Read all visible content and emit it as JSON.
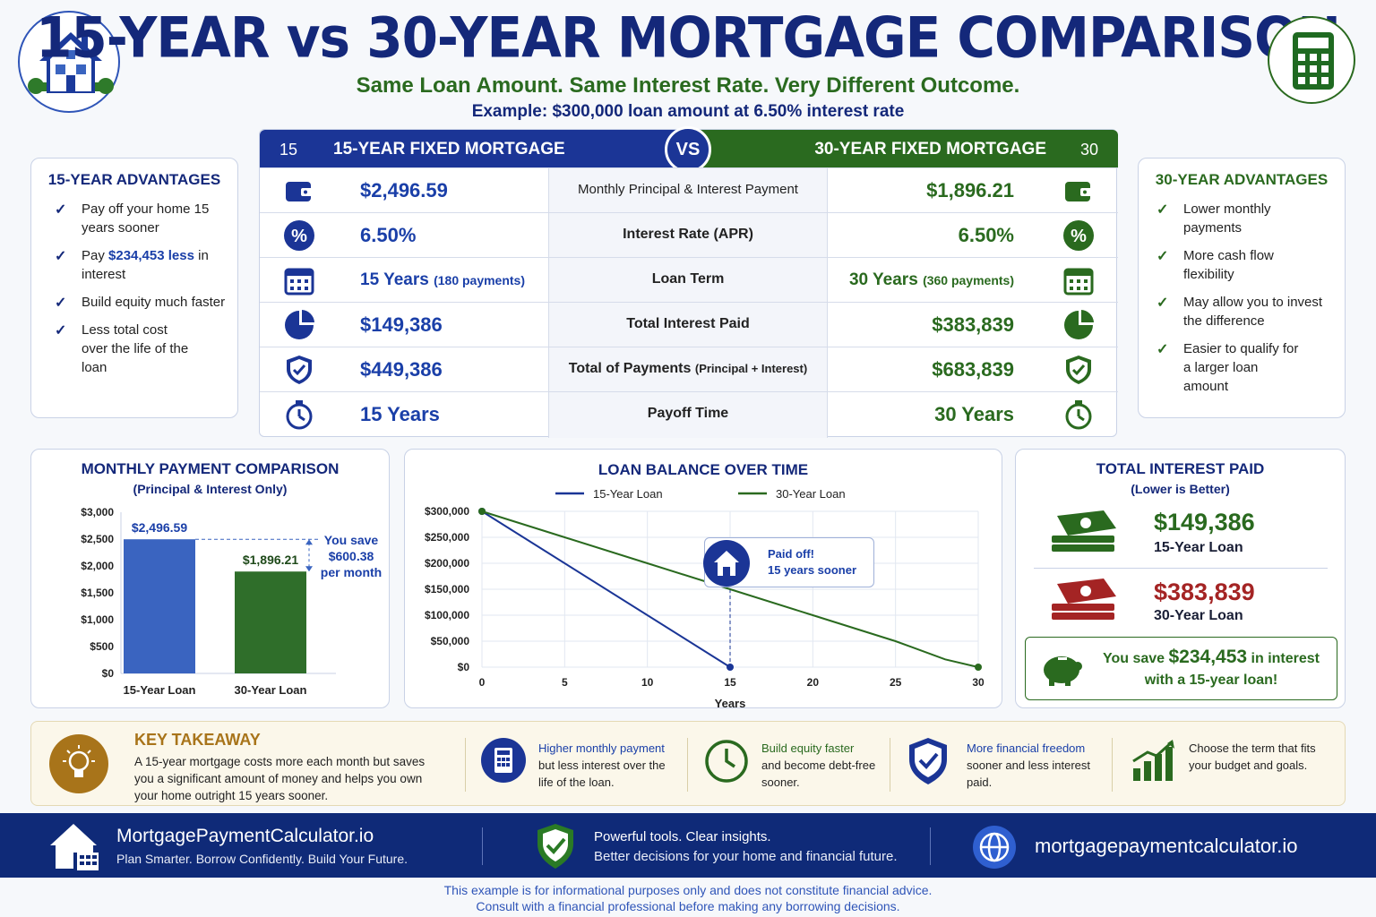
{
  "header": {
    "title": "15-YEAR vs 30-YEAR MORTGAGE COMPARISON",
    "subtitle": "Same Loan Amount. Same Interest Rate. Very Different Outcome.",
    "example": "Example: $300,000 loan amount at 6.50% interest rate"
  },
  "adv15": {
    "title": "15-YEAR ADVANTAGES",
    "items": [
      {
        "pre": "Pay off your home 15 years sooner",
        "hl": "",
        "post": ""
      },
      {
        "pre": "Pay ",
        "hl": "$234,453 less",
        "post": " in interest"
      },
      {
        "pre": "Build equity much faster",
        "hl": "",
        "post": ""
      },
      {
        "pre": "Less total cost over the life of the loan",
        "hl": "",
        "post": ""
      }
    ]
  },
  "adv30": {
    "title": "30-YEAR ADVANTAGES",
    "items": [
      "Lower monthly payments",
      "More cash flow flexibility",
      "May allow you to invest the difference",
      "Easier to qualify for a larger loan amount"
    ]
  },
  "comparison": {
    "left_badge": "15",
    "left_header": "15-YEAR FIXED MORTGAGE",
    "vs": "VS",
    "right_header": "30-YEAR FIXED MORTGAGE",
    "right_badge": "30",
    "rows": [
      {
        "icon": "wallet-icon",
        "left": "$2,496.59",
        "left_note": "",
        "label": "Monthly Principal & Interest Payment",
        "label_note": "",
        "right": "$1,896.21",
        "right_note": ""
      },
      {
        "icon": "percent-icon",
        "left": "6.50%",
        "left_note": "",
        "label": "Interest Rate (APR)",
        "label_note": "",
        "right": "6.50%",
        "right_note": ""
      },
      {
        "icon": "calendar-icon",
        "left": "15 Years",
        "left_note": "(180 payments)",
        "label": "Loan Term",
        "label_note": "",
        "right": "30 Years",
        "right_note": "(360 payments)"
      },
      {
        "icon": "pie-chart-icon",
        "left": "$149,386",
        "left_note": "",
        "label": "Total Interest Paid",
        "label_note": "",
        "right": "$383,839",
        "right_note": ""
      },
      {
        "icon": "shield-check-icon",
        "left": "$449,386",
        "left_note": "",
        "label": "Total of Payments",
        "label_note": "(Principal + Interest)",
        "right": "$683,839",
        "right_note": ""
      },
      {
        "icon": "stopwatch-icon",
        "left": "15 Years",
        "left_note": "",
        "label": "Payoff Time",
        "label_note": "",
        "right": "30 Years",
        "right_note": ""
      }
    ]
  },
  "monthly_panel": {
    "title": "MONTHLY PAYMENT COMPARISON",
    "subtitle": "(Principal & Interest Only)",
    "savings_line1": "You save",
    "savings_line2": "$600.38",
    "savings_line3": "per month"
  },
  "balance_panel": {
    "title": "LOAN BALANCE OVER TIME",
    "callout_line1": "Paid off!",
    "callout_line2": "15 years sooner"
  },
  "interest_panel": {
    "title": "TOTAL INTEREST PAID",
    "subtitle": "(Lower is Better)",
    "v15": "$149,386",
    "l15": "15-Year Loan",
    "v30": "$383,839",
    "l30": "30-Year Loan",
    "save_pre": "You save ",
    "save_amount": "$234,453",
    "save_post": " in interest",
    "save_line2": "with a 15-year loan!"
  },
  "takeaway": {
    "title": "KEY TAKEAWAY",
    "text": "A 15-year mortgage costs more each month but saves you a significant amount of money and helps you own your home outright 15 years sooner.",
    "points": [
      {
        "icon": "calculator-icon",
        "hl": "Higher monthly payment",
        "rest": "but less interest over the life of the loan."
      },
      {
        "icon": "clock-icon",
        "hl": "Build equity faster",
        "rest": "and become debt-free sooner."
      },
      {
        "icon": "shield-check-icon",
        "hl": "More financial freedom",
        "rest": "sooner and less interest paid."
      },
      {
        "icon": "bar-growth-icon",
        "hl": "",
        "rest": "Choose the term that fits your budget and goals."
      }
    ]
  },
  "footer": {
    "brand": "MortgagePaymentCalculator.io",
    "tagline": "Plan Smarter. Borrow Confidently. Build Your Future.",
    "mid_line1": "Powerful tools. Clear insights.",
    "mid_line2": "Better decisions for your home and financial future.",
    "url": "mortgagepaymentcalculator.io",
    "disclaimer1": "This example is for informational purposes only and does not constitute financial advice.",
    "disclaimer2": "Consult with a financial professional before making any borrowing decisions."
  },
  "colors": {
    "navy": "#14287a",
    "blue": "#3a64c0",
    "green": "#2a6a1f",
    "red": "#a42424"
  },
  "chart_data": [
    {
      "type": "bar",
      "title": "MONTHLY PAYMENT COMPARISON",
      "subtitle": "(Principal & Interest Only)",
      "categories": [
        "15-Year Loan",
        "30-Year Loan"
      ],
      "values": [
        2496.59,
        1896.21
      ],
      "data_labels": [
        "$2,496.59",
        "$1,896.21"
      ],
      "ylim": [
        0,
        3000
      ],
      "yticks": [
        0,
        500,
        1000,
        1500,
        2000,
        2500,
        3000
      ],
      "ytick_labels": [
        "$0",
        "$500",
        "$1,000",
        "$1,500",
        "$2,000",
        "$2,500",
        "$3,000"
      ],
      "colors": [
        "#3a64c0",
        "#2f6e2a"
      ]
    },
    {
      "type": "line",
      "title": "LOAN BALANCE OVER TIME",
      "xlabel": "Years",
      "ylabel": "",
      "xlim": [
        0,
        30
      ],
      "ylim": [
        0,
        300000
      ],
      "xticks": [
        0,
        5,
        10,
        15,
        20,
        25,
        30
      ],
      "yticks": [
        0,
        50000,
        100000,
        150000,
        200000,
        250000,
        300000
      ],
      "ytick_labels": [
        "$0",
        "$50,000",
        "$100,000",
        "$150,000",
        "$200,000",
        "$250,000",
        "$300,000"
      ],
      "legend": "top",
      "grid": true,
      "series": [
        {
          "name": "15-Year Loan",
          "color": "#1a3596",
          "x": [
            0,
            15
          ],
          "y": [
            300000,
            0
          ]
        },
        {
          "name": "30-Year Loan",
          "color": "#2a6a1f",
          "x": [
            0,
            5,
            10,
            15,
            20,
            25,
            28,
            30
          ],
          "y": [
            300000,
            250000,
            200000,
            150000,
            100000,
            50000,
            15000,
            0
          ]
        }
      ]
    }
  ]
}
